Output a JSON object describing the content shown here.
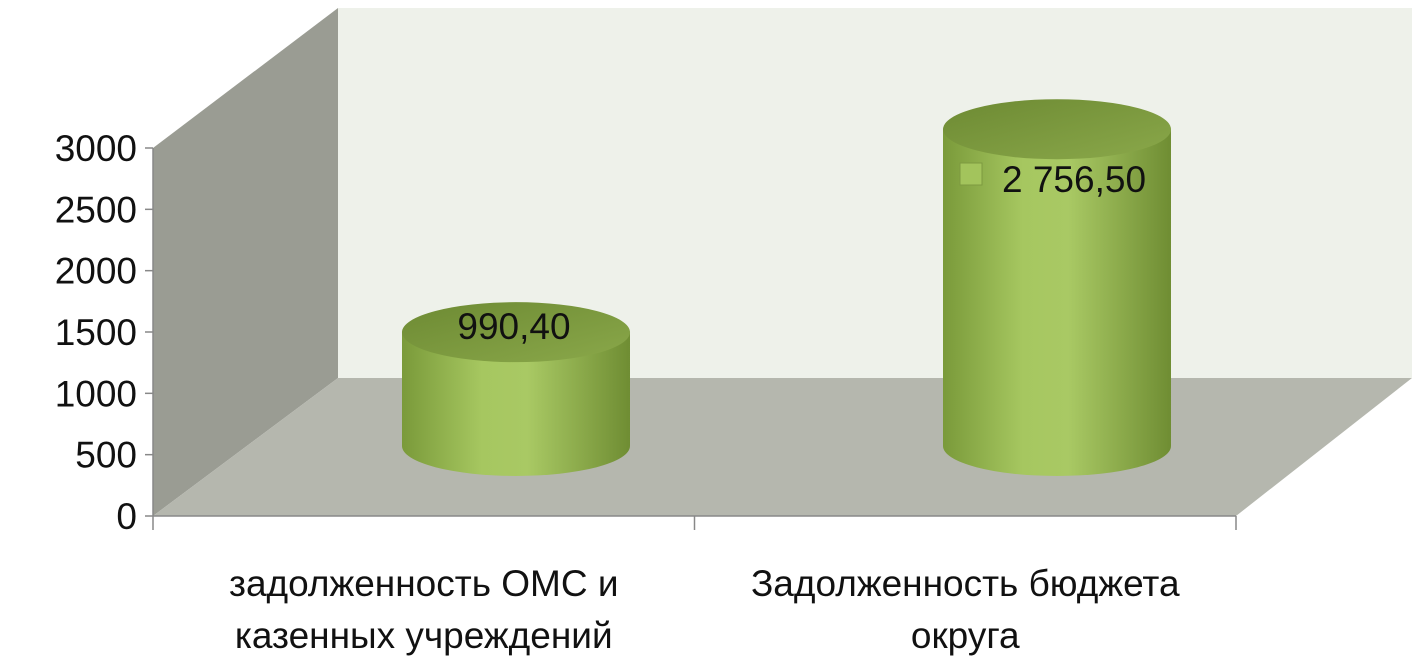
{
  "chart_data": {
    "type": "bar",
    "style": "3d-cylinder",
    "categories": [
      [
        "задолженность ОМС  и",
        "казенных учреждений"
      ],
      [
        "Задолженность бюджета",
        "округа"
      ]
    ],
    "values": [
      990.4,
      2756.5
    ],
    "data_labels": [
      "990,40",
      "2 756,50"
    ],
    "y_ticks": [
      "0",
      "500",
      "1000",
      "1500",
      "2000",
      "2500",
      "3000"
    ],
    "ylim": [
      0,
      3000
    ],
    "title": "",
    "xlabel": "",
    "ylabel": "",
    "grid": false,
    "colors": {
      "bar_light": "#a3c45c",
      "bar_mid": "#8fb24b",
      "bar_dark": "#6e8c34",
      "bar_top": "#79963c",
      "back_wall": "#eef1ea",
      "side_wall": "#9a9c93",
      "floor": "#b5b7ae",
      "text": "#111111"
    }
  }
}
